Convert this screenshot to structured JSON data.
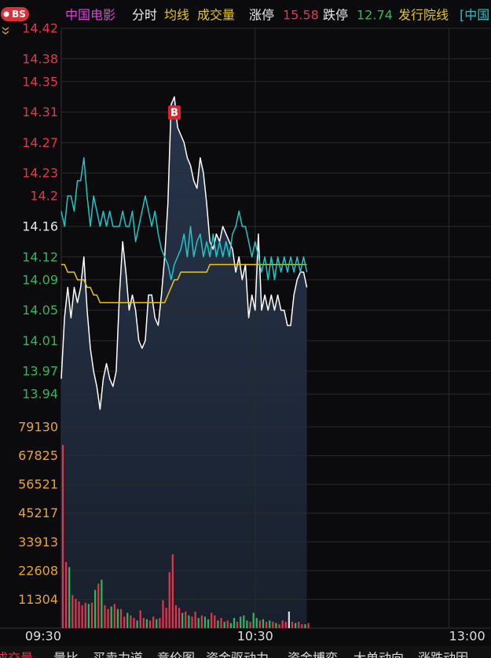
{
  "header": {
    "badge": "BS",
    "stock": "中国电影",
    "limit_up_label": "涨停",
    "limit_up": 15.58,
    "limit_down_label": "跌停",
    "limit_down": 12.74,
    "sector": "发行院线",
    "compare": "[中国"
  },
  "tabs": [
    "成交量",
    "量比",
    "买卖力道",
    "竞价图",
    "资金驱动力",
    "资金博弈",
    "大单动向",
    "涨跌动因"
  ],
  "chart_data": [
    {
      "type": "line",
      "x": [
        0,
        1,
        2,
        3,
        4,
        5,
        6,
        7,
        8,
        9,
        10,
        11,
        12,
        13,
        14,
        15,
        16,
        17,
        18,
        19,
        20,
        21,
        22,
        23,
        24,
        25,
        26,
        27,
        28,
        29,
        30,
        31,
        32,
        33,
        34,
        35,
        36,
        37,
        38,
        39,
        40,
        41,
        42,
        43,
        44,
        45,
        46,
        47,
        48,
        49,
        50,
        51,
        52,
        53,
        54,
        55,
        56,
        57,
        58,
        59,
        60,
        61,
        62,
        63,
        64,
        65,
        66,
        67,
        68,
        69,
        70,
        71,
        72,
        73,
        74,
        75,
        76
      ],
      "series": [
        {
          "name": "分时",
          "color": "#ffffff",
          "values": [
            13.96,
            14.04,
            14.08,
            14.04,
            14.08,
            14.06,
            14.08,
            14.12,
            14.05,
            14.0,
            13.97,
            13.95,
            13.92,
            13.96,
            13.98,
            13.96,
            13.95,
            13.97,
            14.07,
            14.14,
            14.1,
            14.05,
            14.07,
            14.05,
            14.01,
            14.0,
            14.01,
            14.07,
            14.07,
            14.04,
            14.03,
            14.07,
            14.12,
            14.19,
            14.32,
            14.33,
            14.29,
            14.28,
            14.27,
            14.25,
            14.24,
            14.22,
            14.21,
            14.25,
            14.23,
            14.19,
            14.14,
            14.13,
            14.15,
            14.14,
            14.16,
            14.15,
            14.14,
            14.13,
            14.1,
            14.12,
            14.09,
            14.11,
            14.04,
            14.07,
            14.05,
            14.15,
            14.05,
            14.07,
            14.05,
            14.07,
            14.05,
            14.07,
            14.05,
            14.05,
            14.03,
            14.03,
            14.07,
            14.09,
            14.1,
            14.1,
            14.08
          ]
        },
        {
          "name": "均线",
          "color": "#e6c619",
          "values": [
            14.11,
            14.11,
            14.1,
            14.1,
            14.1,
            14.09,
            14.09,
            14.09,
            14.08,
            14.08,
            14.07,
            14.07,
            14.06,
            14.06,
            14.06,
            14.06,
            14.06,
            14.06,
            14.06,
            14.06,
            14.06,
            14.06,
            14.06,
            14.06,
            14.06,
            14.06,
            14.06,
            14.06,
            14.06,
            14.06,
            14.06,
            14.06,
            14.06,
            14.07,
            14.08,
            14.09,
            14.09,
            14.1,
            14.1,
            14.1,
            14.1,
            14.1,
            14.1,
            14.1,
            14.1,
            14.1,
            14.11,
            14.11,
            14.11,
            14.11,
            14.11,
            14.11,
            14.11,
            14.11,
            14.11,
            14.11,
            14.11,
            14.11,
            14.11,
            14.11,
            14.11,
            14.11,
            14.11,
            14.11,
            14.11,
            14.11,
            14.11,
            14.11,
            14.11,
            14.11,
            14.11,
            14.11,
            14.11,
            14.11,
            14.11,
            14.11,
            14.11
          ]
        },
        {
          "color": "#1fc6c6",
          "values": [
            14.18,
            14.16,
            14.2,
            14.2,
            14.18,
            14.22,
            14.22,
            14.25,
            14.2,
            14.16,
            14.2,
            14.18,
            14.16,
            14.18,
            14.16,
            14.18,
            14.16,
            14.16,
            14.16,
            14.18,
            14.16,
            14.16,
            14.18,
            14.14,
            14.16,
            14.18,
            14.2,
            14.18,
            14.16,
            14.18,
            14.15,
            14.13,
            14.12,
            14.11,
            14.09,
            14.11,
            14.12,
            14.13,
            14.15,
            14.12,
            14.16,
            14.12,
            14.14,
            14.15,
            14.12,
            14.14,
            14.12,
            14.15,
            14.12,
            14.14,
            14.12,
            14.14,
            14.12,
            14.15,
            14.16,
            14.18,
            14.16,
            14.16,
            14.14,
            14.12,
            14.14,
            14.12,
            14.1,
            14.12,
            14.09,
            14.12,
            14.09,
            14.12,
            14.1,
            14.12,
            14.1,
            14.12,
            14.1,
            14.12,
            14.1,
            14.12,
            14.1
          ]
        }
      ],
      "annotations": [
        {
          "text": "B",
          "x": 35
        }
      ],
      "xlim": [
        0,
        133
      ],
      "xticks": [
        {
          "value": 0,
          "label": "09:30"
        },
        {
          "value": 60,
          "label": "10:30"
        },
        {
          "value": 120,
          "label": "13:00"
        }
      ],
      "ylim": [
        13.9,
        14.42
      ],
      "yticks": [
        14.42,
        14.38,
        14.35,
        14.31,
        14.27,
        14.23,
        14.2,
        14.16,
        14.12,
        14.09,
        14.05,
        14.01,
        13.97,
        13.94
      ],
      "ytick_colors": [
        "#e8334a",
        "#e8334a",
        "#e8334a",
        "#e8334a",
        "#e8334a",
        "#e8334a",
        "#e8334a",
        "#e6e6e6",
        "#2eb85c",
        "#2eb85c",
        "#2eb85c",
        "#2eb85c",
        "#2eb85c",
        "#2eb85c"
      ],
      "grid": true
    },
    {
      "type": "bar",
      "title": "成交量",
      "x": [
        0,
        1,
        2,
        3,
        4,
        5,
        6,
        7,
        8,
        9,
        10,
        11,
        12,
        13,
        14,
        15,
        16,
        17,
        18,
        19,
        20,
        21,
        22,
        23,
        24,
        25,
        26,
        27,
        28,
        29,
        30,
        31,
        32,
        33,
        34,
        35,
        36,
        37,
        38,
        39,
        40,
        41,
        42,
        43,
        44,
        45,
        46,
        47,
        48,
        49,
        50,
        51,
        52,
        53,
        54,
        55,
        56,
        57,
        58,
        59,
        60,
        61,
        62,
        63,
        64,
        65,
        66,
        67,
        68,
        69,
        70,
        71,
        72,
        73,
        74,
        75,
        76
      ],
      "values": [
        72000,
        26000,
        24000,
        13000,
        11500,
        10500,
        9000,
        10000,
        9500,
        10000,
        15000,
        17500,
        19000,
        9000,
        7500,
        8500,
        9500,
        7500,
        7500,
        4500,
        6000,
        5000,
        4000,
        3000,
        7000,
        4000,
        3500,
        3000,
        4500,
        3500,
        4000,
        11000,
        8000,
        22000,
        29000,
        9000,
        8000,
        6000,
        6500,
        5000,
        4500,
        6500,
        4000,
        5000,
        4500,
        3500,
        6000,
        5000,
        3000,
        4000,
        2500,
        3000,
        2000,
        4000,
        2500,
        4500,
        5000,
        3000,
        2500,
        6000,
        4000,
        3000,
        3500,
        2500,
        3000,
        2500,
        2000,
        1500,
        3000,
        2500,
        6500,
        2500,
        2000,
        2500,
        1500,
        1500,
        2000
      ],
      "colors": [
        "#e8334a",
        "#e8334a",
        "#2eb85c",
        "#e8334a",
        "#e8334a",
        "#e8334a",
        "#e8334a",
        "#e8334a",
        "#2eb85c",
        "#e8334a",
        "#2eb85c",
        "#e8334a",
        "#2eb85c",
        "#e8334a",
        "#e8334a",
        "#2eb85c",
        "#e8334a",
        "#2eb85c",
        "#e8334a",
        "#e8334a",
        "#2eb85c",
        "#e8334a",
        "#e8334a",
        "#2eb85c",
        "#e8334a",
        "#e8334a",
        "#2eb85c",
        "#e8334a",
        "#e8334a",
        "#2eb85c",
        "#e8334a",
        "#e8334a",
        "#e8334a",
        "#e8334a",
        "#e8334a",
        "#e8334a",
        "#e8334a",
        "#2eb85c",
        "#e8334a",
        "#2eb85c",
        "#e8334a",
        "#e8334a",
        "#2eb85c",
        "#e8334a",
        "#2eb85c",
        "#2eb85c",
        "#e8334a",
        "#e8334a",
        "#2eb85c",
        "#e8334a",
        "#2eb85c",
        "#e8334a",
        "#2eb85c",
        "#2eb85c",
        "#e8334a",
        "#2eb85c",
        "#2eb85c",
        "#2eb85c",
        "#e8334a",
        "#2eb85c",
        "#2eb85c",
        "#e8334a",
        "#2eb85c",
        "#e8334a",
        "#2eb85c",
        "#e8334a",
        "#2eb85c",
        "#e8334a",
        "#e8334a",
        "#e8334a",
        "#dddddd",
        "#e8334a",
        "#2eb85c",
        "#e8334a",
        "#e8334a",
        "#2eb85c",
        "#e8334a"
      ],
      "xlim": [
        0,
        133
      ],
      "ylim": [
        0,
        79130
      ],
      "yticks": [
        79130,
        67825,
        56521,
        45217,
        33913,
        22608,
        11304
      ],
      "tick_color": "#e8a23a",
      "grid": true
    }
  ]
}
